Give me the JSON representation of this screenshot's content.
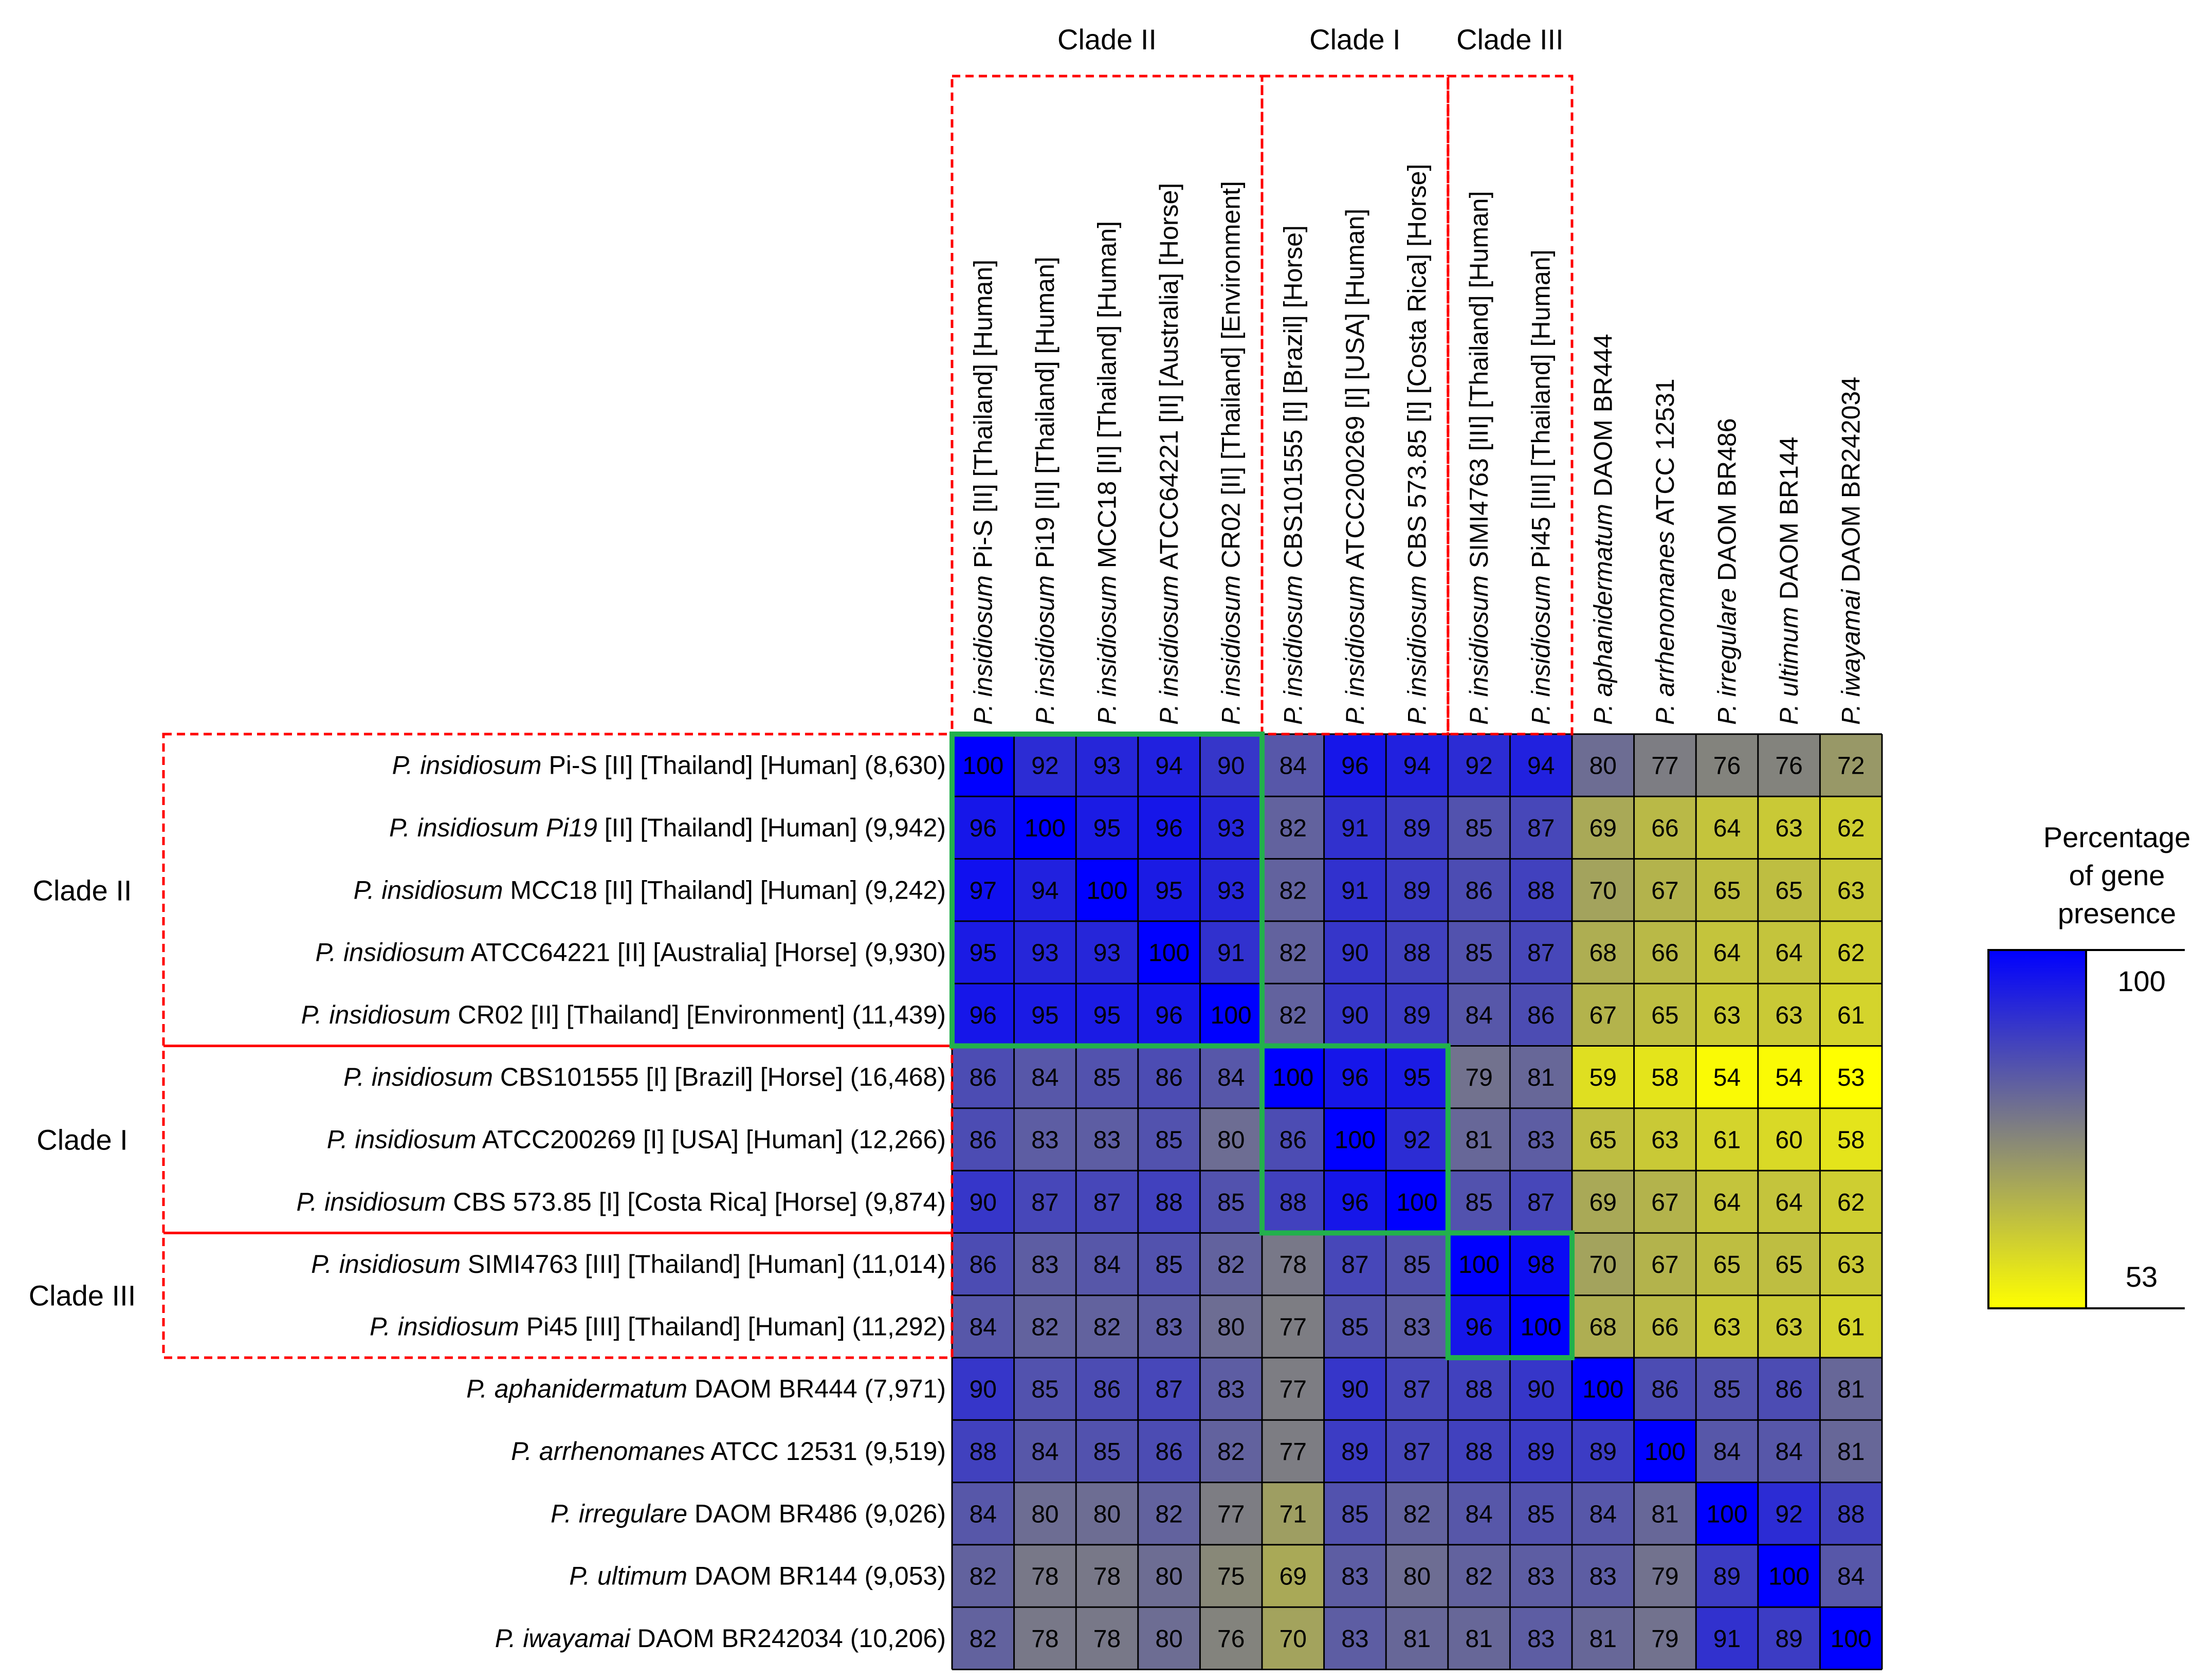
{
  "chart_data": {
    "type": "heatmap",
    "title": "",
    "rows": [
      {
        "species": "P. insidiosum",
        "rest": " Pi-S [II] [Thailand] [Human] (8,630)"
      },
      {
        "species": "P. insidiosum Pi19",
        "rest": " [II] [Thailand] [Human] (9,942)"
      },
      {
        "species": "P. insidiosum",
        "rest": " MCC18 [II] [Thailand] [Human] (9,242)"
      },
      {
        "species": "P. insidiosum",
        "rest": " ATCC64221 [II] [Australia] [Horse] (9,930)"
      },
      {
        "species": "P. insidiosum",
        "rest": " CR02 [II] [Thailand] [Environment] (11,439)"
      },
      {
        "species": "P. insidiosum",
        "rest": " CBS101555 [I] [Brazil] [Horse] (16,468)"
      },
      {
        "species": "P. insidiosum",
        "rest": " ATCC200269 [I] [USA] [Human] (12,266)"
      },
      {
        "species": "P. insidiosum",
        "rest": " CBS 573.85 [I] [Costa Rica] [Horse] (9,874)"
      },
      {
        "species": "P. insidiosum",
        "rest": " SIMI4763 [III] [Thailand] [Human] (11,014)"
      },
      {
        "species": "P. insidiosum",
        "rest": " Pi45 [III] [Thailand] [Human] (11,292)"
      },
      {
        "species": "P. aphanidermatum",
        "rest": " DAOM BR444 (7,971)"
      },
      {
        "species": "P. arrhenomanes",
        "rest": " ATCC 12531 (9,519)"
      },
      {
        "species": "P. irregulare",
        "rest": " DAOM BR486 (9,026)"
      },
      {
        "species": "P. ultimum",
        "rest": " DAOM BR144 (9,053)"
      },
      {
        "species": "P. iwayamai",
        "rest": " DAOM BR242034 (10,206)"
      }
    ],
    "columns": [
      {
        "species": "P. insidiosum",
        "rest": " Pi-S [II] [Thailand] [Human]"
      },
      {
        "species": "P. insidiosum",
        "rest": " Pi19 [II] [Thailand] [Human]"
      },
      {
        "species": "P. insidiosum",
        "rest": " MCC18 [II] [Thailand] [Human]"
      },
      {
        "species": "P. insidiosum",
        "rest": " ATCC64221 [II] [Australia] [Horse]"
      },
      {
        "species": "P. insidiosum",
        "rest": " CR02 [II] [Thailand] [Environment]"
      },
      {
        "species": "P. insidiosum",
        "rest": " CBS101555 [I] [Brazil] [Horse]"
      },
      {
        "species": "P. insidiosum",
        "rest": " ATCC200269 [I] [USA] [Human]"
      },
      {
        "species": "P. insidiosum",
        "rest": " CBS 573.85 [I] [Costa Rica] [Horse]"
      },
      {
        "species": "P. insidiosum",
        "rest": " SIMI4763 [III] [Thailand] [Human]"
      },
      {
        "species": "P. insidiosum",
        "rest": " Pi45 [III] [Thailand] [Human]"
      },
      {
        "species": "P. aphanidermatum",
        "rest": " DAOM BR444"
      },
      {
        "species": "P. arrhenomanes",
        "rest": " ATCC 12531"
      },
      {
        "species": "P. irregulare",
        "rest": " DAOM BR486"
      },
      {
        "species": "P. ultimum",
        "rest": " DAOM BR144"
      },
      {
        "species": "P. iwayamai",
        "rest": " DAOM BR242034"
      }
    ],
    "values": [
      [
        100,
        92,
        93,
        94,
        90,
        84,
        96,
        94,
        92,
        94,
        80,
        77,
        76,
        76,
        72
      ],
      [
        96,
        100,
        95,
        96,
        93,
        82,
        91,
        89,
        85,
        87,
        69,
        66,
        64,
        63,
        62
      ],
      [
        97,
        94,
        100,
        95,
        93,
        82,
        91,
        89,
        86,
        88,
        70,
        67,
        65,
        65,
        63
      ],
      [
        95,
        93,
        93,
        100,
        91,
        82,
        90,
        88,
        85,
        87,
        68,
        66,
        64,
        64,
        62
      ],
      [
        96,
        95,
        95,
        96,
        100,
        82,
        90,
        89,
        84,
        86,
        67,
        65,
        63,
        63,
        61
      ],
      [
        86,
        84,
        85,
        86,
        84,
        100,
        96,
        95,
        79,
        81,
        59,
        58,
        54,
        54,
        53
      ],
      [
        86,
        83,
        83,
        85,
        80,
        86,
        100,
        92,
        81,
        83,
        65,
        63,
        61,
        60,
        58
      ],
      [
        90,
        87,
        87,
        88,
        85,
        88,
        96,
        100,
        85,
        87,
        69,
        67,
        64,
        64,
        62
      ],
      [
        86,
        83,
        84,
        85,
        82,
        78,
        87,
        85,
        100,
        98,
        70,
        67,
        65,
        65,
        63
      ],
      [
        84,
        82,
        82,
        83,
        80,
        77,
        85,
        83,
        96,
        100,
        68,
        66,
        63,
        63,
        61
      ],
      [
        90,
        85,
        86,
        87,
        83,
        77,
        90,
        87,
        88,
        90,
        100,
        86,
        85,
        86,
        81
      ],
      [
        88,
        84,
        85,
        86,
        82,
        77,
        89,
        87,
        88,
        89,
        89,
        100,
        84,
        84,
        81
      ],
      [
        84,
        80,
        80,
        82,
        77,
        71,
        85,
        82,
        84,
        85,
        84,
        81,
        100,
        92,
        88
      ],
      [
        82,
        78,
        78,
        80,
        75,
        69,
        83,
        80,
        82,
        83,
        83,
        79,
        89,
        100,
        84
      ],
      [
        82,
        78,
        78,
        80,
        76,
        70,
        83,
        81,
        81,
        83,
        81,
        79,
        91,
        89,
        100
      ]
    ],
    "clades": [
      {
        "name": "Clade II",
        "start": 0,
        "end": 4
      },
      {
        "name": "Clade I",
        "start": 5,
        "end": 7
      },
      {
        "name": "Clade III",
        "start": 8,
        "end": 9
      }
    ],
    "color_scale": {
      "min": 53,
      "max": 100,
      "mid_color": "#808080",
      "low_color": "#ffff00",
      "high_color": "#0000ff"
    },
    "legend": {
      "title_lines": [
        "Percentage",
        "of gene",
        "presence"
      ],
      "max_label": "100",
      "min_label": "53",
      "position": "right"
    },
    "colors": {
      "clade_box": "#ff0000",
      "diagonal_box": "#22b14c",
      "grid": "#000000"
    }
  }
}
